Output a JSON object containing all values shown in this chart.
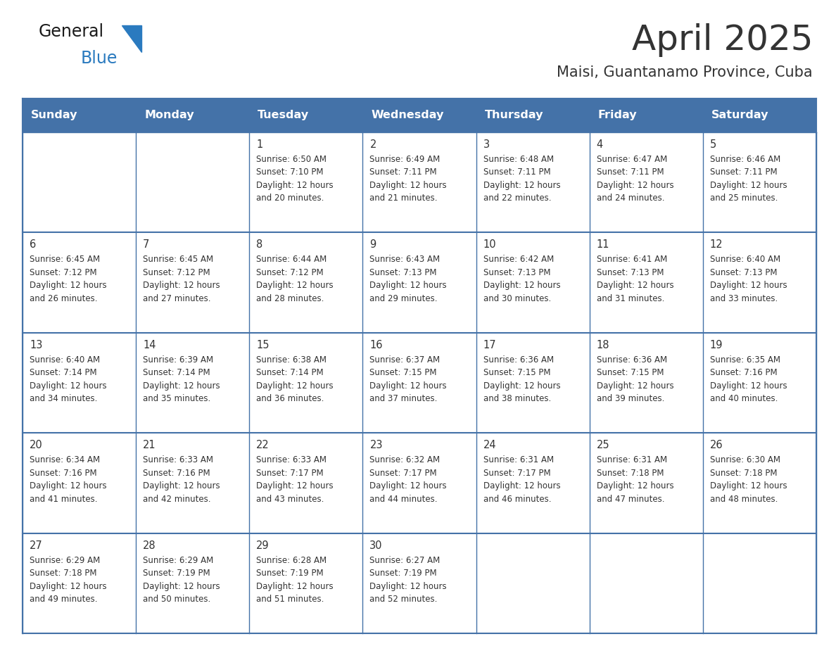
{
  "title": "April 2025",
  "subtitle": "Maisi, Guantanamo Province, Cuba",
  "header_color": "#4472a8",
  "header_text_color": "#ffffff",
  "cell_bg_white": "#ffffff",
  "cell_bg_gray": "#f2f2f2",
  "border_color": "#4472a8",
  "text_color": "#333333",
  "days_of_week": [
    "Sunday",
    "Monday",
    "Tuesday",
    "Wednesday",
    "Thursday",
    "Friday",
    "Saturday"
  ],
  "calendar_data": [
    [
      {
        "day": "",
        "sunrise": "",
        "sunset": "",
        "daylight_min": ""
      },
      {
        "day": "",
        "sunrise": "",
        "sunset": "",
        "daylight_min": ""
      },
      {
        "day": "1",
        "sunrise": "6:50 AM",
        "sunset": "7:10 PM",
        "daylight_min": "20"
      },
      {
        "day": "2",
        "sunrise": "6:49 AM",
        "sunset": "7:11 PM",
        "daylight_min": "21"
      },
      {
        "day": "3",
        "sunrise": "6:48 AM",
        "sunset": "7:11 PM",
        "daylight_min": "22"
      },
      {
        "day": "4",
        "sunrise": "6:47 AM",
        "sunset": "7:11 PM",
        "daylight_min": "24"
      },
      {
        "day": "5",
        "sunrise": "6:46 AM",
        "sunset": "7:11 PM",
        "daylight_min": "25"
      }
    ],
    [
      {
        "day": "6",
        "sunrise": "6:45 AM",
        "sunset": "7:12 PM",
        "daylight_min": "26"
      },
      {
        "day": "7",
        "sunrise": "6:45 AM",
        "sunset": "7:12 PM",
        "daylight_min": "27"
      },
      {
        "day": "8",
        "sunrise": "6:44 AM",
        "sunset": "7:12 PM",
        "daylight_min": "28"
      },
      {
        "day": "9",
        "sunrise": "6:43 AM",
        "sunset": "7:13 PM",
        "daylight_min": "29"
      },
      {
        "day": "10",
        "sunrise": "6:42 AM",
        "sunset": "7:13 PM",
        "daylight_min": "30"
      },
      {
        "day": "11",
        "sunrise": "6:41 AM",
        "sunset": "7:13 PM",
        "daylight_min": "31"
      },
      {
        "day": "12",
        "sunrise": "6:40 AM",
        "sunset": "7:13 PM",
        "daylight_min": "33"
      }
    ],
    [
      {
        "day": "13",
        "sunrise": "6:40 AM",
        "sunset": "7:14 PM",
        "daylight_min": "34"
      },
      {
        "day": "14",
        "sunrise": "6:39 AM",
        "sunset": "7:14 PM",
        "daylight_min": "35"
      },
      {
        "day": "15",
        "sunrise": "6:38 AM",
        "sunset": "7:14 PM",
        "daylight_min": "36"
      },
      {
        "day": "16",
        "sunrise": "6:37 AM",
        "sunset": "7:15 PM",
        "daylight_min": "37"
      },
      {
        "day": "17",
        "sunrise": "6:36 AM",
        "sunset": "7:15 PM",
        "daylight_min": "38"
      },
      {
        "day": "18",
        "sunrise": "6:36 AM",
        "sunset": "7:15 PM",
        "daylight_min": "39"
      },
      {
        "day": "19",
        "sunrise": "6:35 AM",
        "sunset": "7:16 PM",
        "daylight_min": "40"
      }
    ],
    [
      {
        "day": "20",
        "sunrise": "6:34 AM",
        "sunset": "7:16 PM",
        "daylight_min": "41"
      },
      {
        "day": "21",
        "sunrise": "6:33 AM",
        "sunset": "7:16 PM",
        "daylight_min": "42"
      },
      {
        "day": "22",
        "sunrise": "6:33 AM",
        "sunset": "7:17 PM",
        "daylight_min": "43"
      },
      {
        "day": "23",
        "sunrise": "6:32 AM",
        "sunset": "7:17 PM",
        "daylight_min": "44"
      },
      {
        "day": "24",
        "sunrise": "6:31 AM",
        "sunset": "7:17 PM",
        "daylight_min": "46"
      },
      {
        "day": "25",
        "sunrise": "6:31 AM",
        "sunset": "7:18 PM",
        "daylight_min": "47"
      },
      {
        "day": "26",
        "sunrise": "6:30 AM",
        "sunset": "7:18 PM",
        "daylight_min": "48"
      }
    ],
    [
      {
        "day": "27",
        "sunrise": "6:29 AM",
        "sunset": "7:18 PM",
        "daylight_min": "49"
      },
      {
        "day": "28",
        "sunrise": "6:29 AM",
        "sunset": "7:19 PM",
        "daylight_min": "50"
      },
      {
        "day": "29",
        "sunrise": "6:28 AM",
        "sunset": "7:19 PM",
        "daylight_min": "51"
      },
      {
        "day": "30",
        "sunrise": "6:27 AM",
        "sunset": "7:19 PM",
        "daylight_min": "52"
      },
      {
        "day": "",
        "sunrise": "",
        "sunset": "",
        "daylight_min": ""
      },
      {
        "day": "",
        "sunrise": "",
        "sunset": "",
        "daylight_min": ""
      },
      {
        "day": "",
        "sunrise": "",
        "sunset": "",
        "daylight_min": ""
      }
    ]
  ],
  "logo_color_general": "#1a1a1a",
  "logo_color_blue": "#2a7abf",
  "logo_triangle_color": "#2a7abf"
}
